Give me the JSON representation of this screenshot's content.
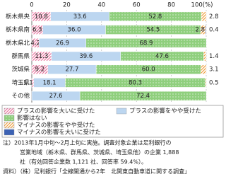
{
  "chart_data": {
    "type": "stacked_bar_h",
    "categories": [
      "栃木県央",
      "栃木県南",
      "栃木県北",
      "群馬県",
      "茨城県",
      "埼玉県",
      "その他"
    ],
    "series": [
      {
        "name": "プラスの影響を大いに受けた",
        "color": "#e8769f",
        "fill_style": "hatch",
        "values": [
          10.8,
          6.3,
          4.2,
          11.3,
          9.2,
          1.1,
          null
        ]
      },
      {
        "name": "プラスの影響をやや受けた",
        "color": "#bcd6f0",
        "fill_style": "solid",
        "values": [
          33.6,
          36.0,
          26.9,
          39.6,
          27.7,
          18.1,
          27.6
        ],
        "value_labels": [
          "33.6",
          "36.0",
          "26.9",
          "39.6",
          "27.7",
          "18.1",
          "27.6"
        ]
      },
      {
        "name": "影響はない",
        "color": "#8fcf7d",
        "fill_style": "dots",
        "values": [
          52.8,
          54.5,
          68.9,
          47.6,
          60.0,
          80.3,
          72.4
        ],
        "value_labels": [
          "52.8",
          "54.5",
          "68.9",
          "47.6",
          "60.0",
          "80.3",
          "72.4"
        ]
      },
      {
        "name": "マイナスの影響をやや受けた",
        "color": "#f0a040",
        "fill_style": "hatch",
        "values": [
          2.8,
          2.8,
          null,
          1.4,
          3.1,
          0.5,
          null
        ]
      },
      {
        "name": "マイナスの影響を大いに受けた",
        "color": "#3c62b4",
        "fill_style": "solid",
        "values": [
          null,
          0.4,
          null,
          null,
          null,
          null,
          null
        ]
      }
    ],
    "xlim": [
      0,
      100
    ],
    "xticks": [
      0,
      20,
      40,
      60,
      80,
      {
        "value": 100,
        "label": "100(%)"
      }
    ],
    "grid": true,
    "notes": [
      "注）2013年1月中旬〜2月上旬に実施。調査対象企業は足利銀行の",
      "営業地域（栃木県、群馬県、茨城県、埼玉県他）の企業 1,888",
      "社（有効回答企業数 1,121 社、回答率 59.4%）。",
      "資料）（株）足利銀行「全線開通から2年　北関東自動車道に関する調査」"
    ]
  }
}
